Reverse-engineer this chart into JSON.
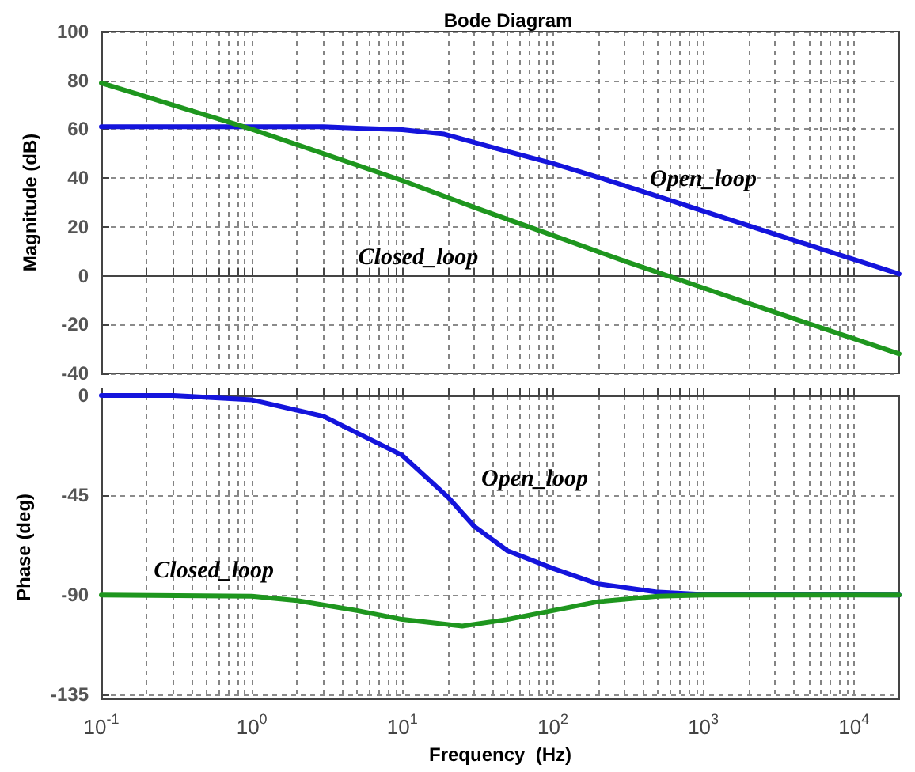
{
  "chart_data": [
    {
      "type": "line",
      "title": "Bode Diagram",
      "ylabel": "Magnitude (dB)",
      "tick_labels": "y",
      "grid": true,
      "log": "x",
      "xlim": [
        0.1,
        20000
      ],
      "ylim": [
        -40,
        100
      ],
      "yticks": [
        -40,
        -20,
        0,
        20,
        40,
        60,
        80,
        100
      ],
      "xticks": [
        {
          "value": 0.1,
          "label": null
        },
        {
          "value": 0.2,
          "label": null
        },
        {
          "value": 0.3,
          "label": null
        },
        {
          "value": 0.4,
          "label": null
        },
        {
          "value": 0.5,
          "label": null
        },
        {
          "value": 0.6,
          "label": null
        },
        {
          "value": 0.7,
          "label": null
        },
        {
          "value": 0.8,
          "label": null
        },
        {
          "value": 0.9,
          "label": null
        },
        {
          "value": 1,
          "label": null
        },
        {
          "value": 2,
          "label": null
        },
        {
          "value": 3,
          "label": null
        },
        {
          "value": 4,
          "label": null
        },
        {
          "value": 5,
          "label": null
        },
        {
          "value": 6,
          "label": null
        },
        {
          "value": 7,
          "label": null
        },
        {
          "value": 8,
          "label": null
        },
        {
          "value": 9,
          "label": null
        },
        {
          "value": 10,
          "label": null
        },
        {
          "value": 20,
          "label": null
        },
        {
          "value": 30,
          "label": null
        },
        {
          "value": 40,
          "label": null
        },
        {
          "value": 50,
          "label": null
        },
        {
          "value": 60,
          "label": null
        },
        {
          "value": 70,
          "label": null
        },
        {
          "value": 80,
          "label": null
        },
        {
          "value": 90,
          "label": null
        },
        {
          "value": 100,
          "label": null
        },
        {
          "value": 200,
          "label": null
        },
        {
          "value": 300,
          "label": null
        },
        {
          "value": 400,
          "label": null
        },
        {
          "value": 500,
          "label": null
        },
        {
          "value": 600,
          "label": null
        },
        {
          "value": 700,
          "label": null
        },
        {
          "value": 800,
          "label": null
        },
        {
          "value": 900,
          "label": null
        },
        {
          "value": 1000,
          "label": null
        },
        {
          "value": 2000,
          "label": null
        },
        {
          "value": 3000,
          "label": null
        },
        {
          "value": 4000,
          "label": null
        },
        {
          "value": 5000,
          "label": null
        },
        {
          "value": 6000,
          "label": null
        },
        {
          "value": 7000,
          "label": null
        },
        {
          "value": 8000,
          "label": null
        },
        {
          "value": 9000,
          "label": null
        },
        {
          "value": 10000,
          "label": null
        }
      ],
      "series": [
        {
          "name": "Open_loop",
          "color": "#1414dc",
          "x": [
            0.1,
            0.3,
            1,
            3,
            5,
            10,
            19,
            43,
            100,
            250,
            1000,
            3000,
            20000
          ],
          "values": [
            61,
            61,
            61,
            61,
            60.5,
            59.8,
            58,
            52,
            46,
            38.5,
            26.5,
            17,
            0.7
          ]
        },
        {
          "name": "Closed_loop",
          "color": "#1e961e",
          "x": [
            0.1,
            1,
            10,
            30,
            100,
            300,
            1000,
            3000,
            20000
          ],
          "values": [
            79,
            60,
            39,
            28,
            16.5,
            6,
            -5,
            -15,
            -32
          ]
        }
      ]
    },
    {
      "type": "line",
      "xlabel": "Frequency  (Hz)",
      "ylabel": "Phase (deg)",
      "grid": true,
      "log": "x",
      "xlim": [
        0.1,
        20000
      ],
      "ylim": [
        -137,
        0
      ],
      "yticks": [
        -135,
        -90,
        -45,
        0
      ],
      "xticks": [
        {
          "value": 0.1,
          "label": "10$^{-1}$"
        },
        {
          "value": 0.2,
          "label": null
        },
        {
          "value": 0.3,
          "label": null
        },
        {
          "value": 0.4,
          "label": null
        },
        {
          "value": 0.5,
          "label": null
        },
        {
          "value": 0.6,
          "label": null
        },
        {
          "value": 0.7,
          "label": null
        },
        {
          "value": 0.8,
          "label": null
        },
        {
          "value": 0.9,
          "label": null
        },
        {
          "value": 1,
          "label": "10$^{0}$"
        },
        {
          "value": 2,
          "label": null
        },
        {
          "value": 3,
          "label": null
        },
        {
          "value": 4,
          "label": null
        },
        {
          "value": 5,
          "label": null
        },
        {
          "value": 6,
          "label": null
        },
        {
          "value": 7,
          "label": null
        },
        {
          "value": 8,
          "label": null
        },
        {
          "value": 9,
          "label": null
        },
        {
          "value": 10,
          "label": "10$^{1}$"
        },
        {
          "value": 20,
          "label": null
        },
        {
          "value": 30,
          "label": null
        },
        {
          "value": 40,
          "label": null
        },
        {
          "value": 50,
          "label": null
        },
        {
          "value": 60,
          "label": null
        },
        {
          "value": 70,
          "label": null
        },
        {
          "value": 80,
          "label": null
        },
        {
          "value": 90,
          "label": null
        },
        {
          "value": 100,
          "label": "10$^{2}$"
        },
        {
          "value": 200,
          "label": null
        },
        {
          "value": 300,
          "label": null
        },
        {
          "value": 400,
          "label": null
        },
        {
          "value": 500,
          "label": null
        },
        {
          "value": 600,
          "label": null
        },
        {
          "value": 700,
          "label": null
        },
        {
          "value": 800,
          "label": null
        },
        {
          "value": 900,
          "label": null
        },
        {
          "value": 1000,
          "label": "10$^{3}$"
        },
        {
          "value": 2000,
          "label": null
        },
        {
          "value": 3000,
          "label": null
        },
        {
          "value": 4000,
          "label": null
        },
        {
          "value": 5000,
          "label": null
        },
        {
          "value": 6000,
          "label": null
        },
        {
          "value": 7000,
          "label": null
        },
        {
          "value": 8000,
          "label": null
        },
        {
          "value": 9000,
          "label": null
        },
        {
          "value": 10000,
          "label": "10$^{4}$"
        }
      ],
      "series": [
        {
          "name": "Open_loop",
          "color": "#1414dc",
          "x": [
            0.1,
            0.3,
            1,
            3,
            10,
            20,
            30,
            50,
            100,
            200,
            500,
            1000,
            20000
          ],
          "values": [
            0,
            0,
            -2,
            -9.4,
            -27,
            -45.7,
            -59,
            -70,
            -78,
            -85,
            -88.7,
            -89.7,
            -90
          ]
        },
        {
          "name": "Closed_loop",
          "color": "#1e961e",
          "x": [
            0.1,
            1,
            2,
            5,
            10,
            25,
            50,
            100,
            200,
            500,
            1000,
            20000
          ],
          "values": [
            -90,
            -90.5,
            -92.5,
            -97,
            -101,
            -104,
            -101,
            -97,
            -93,
            -90.5,
            -90,
            -90
          ]
        }
      ]
    }
  ]
}
